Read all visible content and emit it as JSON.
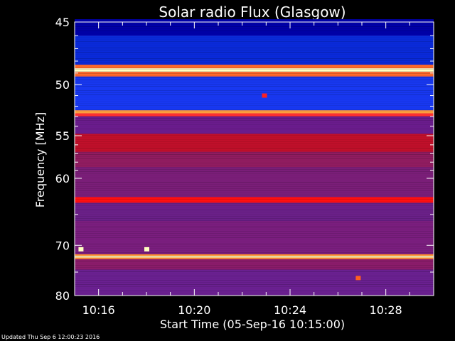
{
  "footer": "Updated Thu Sep  6 12:00:23 2016",
  "chart_data": {
    "type": "heatmap",
    "title": "Solar radio Flux (Glasgow)",
    "xlabel": "Start Time (05-Sep-16 10:15:00)",
    "ylabel": "Frequency [MHz]",
    "xlim": [
      "10:15:00",
      "10:30:00"
    ],
    "ylim": [
      80,
      45
    ],
    "x_ticks": [
      "10:16",
      "10:20",
      "10:24",
      "10:28"
    ],
    "y_ticks": [
      45,
      50,
      55,
      60,
      70,
      80
    ],
    "colors": {
      "background": "#000000",
      "low": "#0010a0",
      "mid": "#7a1b7a",
      "high": "#ff0000",
      "peak": "#ffff80"
    },
    "bands": [
      {
        "from": 44.8,
        "to": 46.0,
        "color": "#0000a8"
      },
      {
        "from": 46.0,
        "to": 48.3,
        "color": "#0a2ad8"
      },
      {
        "from": 48.3,
        "to": 48.6,
        "color": "#ff6a2a"
      },
      {
        "from": 48.6,
        "to": 48.9,
        "color": "#ffffc0"
      },
      {
        "from": 48.9,
        "to": 49.3,
        "color": "#ff6a2a"
      },
      {
        "from": 49.3,
        "to": 52.4,
        "color": "#1838f0"
      },
      {
        "from": 52.4,
        "to": 52.7,
        "color": "#ffa040"
      },
      {
        "from": 52.7,
        "to": 53.0,
        "color": "#ff3030"
      },
      {
        "from": 53.0,
        "to": 54.8,
        "color": "#6a1c8c"
      },
      {
        "from": 54.8,
        "to": 56.8,
        "color": "#c0102a"
      },
      {
        "from": 56.8,
        "to": 58.6,
        "color": "#901c60"
      },
      {
        "from": 58.6,
        "to": 62.5,
        "color": "#7a1e78"
      },
      {
        "from": 62.5,
        "to": 63.3,
        "color": "#ff1010"
      },
      {
        "from": 63.3,
        "to": 66.0,
        "color": "#6a2088"
      },
      {
        "from": 66.0,
        "to": 71.6,
        "color": "#7a1e7e"
      },
      {
        "from": 71.6,
        "to": 71.9,
        "color": "#ff9030"
      },
      {
        "from": 71.9,
        "to": 72.2,
        "color": "#ffffc0"
      },
      {
        "from": 72.2,
        "to": 72.5,
        "color": "#ff9030"
      },
      {
        "from": 72.5,
        "to": 74.5,
        "color": "#8a1c6a"
      },
      {
        "from": 74.5,
        "to": 80.0,
        "color": "#6a2090"
      }
    ],
    "bursts": [
      {
        "time": "10:15:15",
        "freq": 70.7,
        "color": "#ffffc0"
      },
      {
        "time": "10:18:00",
        "freq": 70.7,
        "color": "#ffffc0"
      },
      {
        "time": "10:22:55",
        "freq": 51.0,
        "color": "#ff2020"
      },
      {
        "time": "10:26:50",
        "freq": 76.2,
        "color": "#ff6020"
      }
    ]
  }
}
